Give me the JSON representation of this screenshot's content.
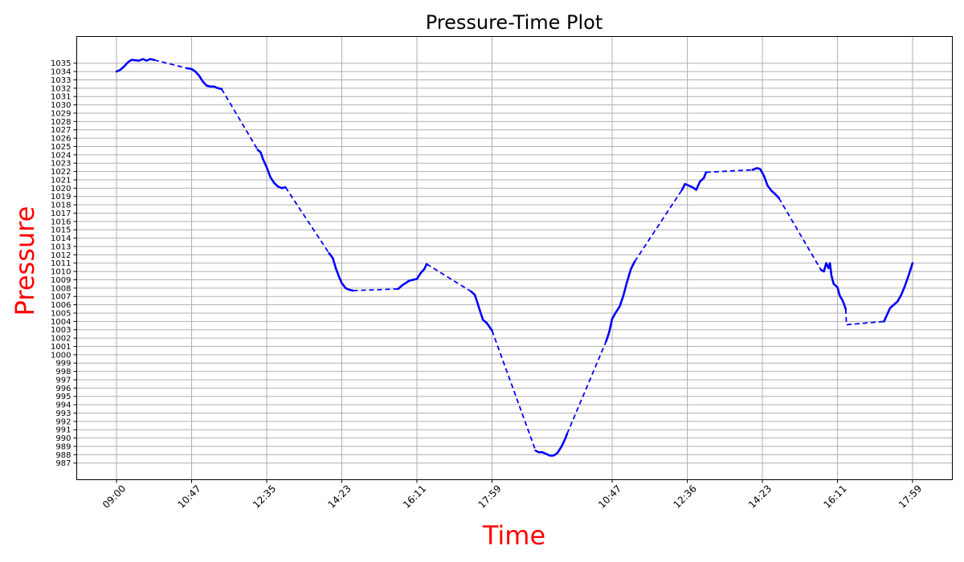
{
  "chart_data": {
    "type": "line",
    "title": "Pressure-Time Plot",
    "xlabel": "Time",
    "ylabel": "Pressure",
    "title_color": "#000000",
    "axis_label_color": "#ff0000",
    "line_color": "#0000ff",
    "grid": true,
    "x_tick_labels": [
      "09:00",
      "10:47",
      "12:35",
      "14:23",
      "16:11",
      "17:59",
      "10:47",
      "12:36",
      "14:23",
      "16:11",
      "17:59"
    ],
    "x_tick_positions": [
      0,
      1,
      2,
      3,
      4,
      5,
      6.6,
      7.6,
      8.6,
      9.6,
      10.6
    ],
    "xlim": [
      -0.53,
      11.13
    ],
    "ylim": [
      985.0,
      1038.2
    ],
    "y_ticks": [
      987,
      988,
      989,
      990,
      991,
      992,
      993,
      994,
      995,
      996,
      997,
      998,
      999,
      1000,
      1001,
      1002,
      1003,
      1004,
      1005,
      1006,
      1007,
      1008,
      1009,
      1010,
      1011,
      1012,
      1013,
      1014,
      1015,
      1016,
      1017,
      1018,
      1019,
      1020,
      1021,
      1022,
      1023,
      1024,
      1025,
      1026,
      1027,
      1028,
      1029,
      1030,
      1031,
      1032,
      1033,
      1034,
      1035
    ],
    "solid_segments": [
      [
        [
          0.0,
          1034.0
        ],
        [
          0.05,
          1034.2
        ],
        [
          0.1,
          1034.6
        ],
        [
          0.15,
          1035.1
        ],
        [
          0.2,
          1035.4
        ],
        [
          0.3,
          1035.3
        ],
        [
          0.35,
          1035.5
        ],
        [
          0.4,
          1035.3
        ],
        [
          0.45,
          1035.5
        ],
        [
          0.5,
          1035.4
        ]
      ],
      [
        [
          0.93,
          1034.4
        ],
        [
          1.0,
          1034.3
        ],
        [
          1.05,
          1034.0
        ],
        [
          1.1,
          1033.5
        ],
        [
          1.15,
          1032.8
        ],
        [
          1.2,
          1032.3
        ],
        [
          1.25,
          1032.2
        ],
        [
          1.3,
          1032.2
        ],
        [
          1.35,
          1032.0
        ],
        [
          1.4,
          1031.9
        ]
      ],
      [
        [
          1.88,
          1024.6
        ],
        [
          1.92,
          1024.3
        ],
        [
          1.95,
          1023.5
        ],
        [
          2.0,
          1022.5
        ],
        [
          2.05,
          1021.3
        ],
        [
          2.1,
          1020.6
        ],
        [
          2.15,
          1020.2
        ],
        [
          2.2,
          1020.0
        ],
        [
          2.25,
          1020.1
        ]
      ],
      [
        [
          2.83,
          1012.2
        ],
        [
          2.88,
          1011.6
        ],
        [
          2.92,
          1010.4
        ],
        [
          2.97,
          1009.2
        ],
        [
          3.0,
          1008.6
        ],
        [
          3.05,
          1008.0
        ],
        [
          3.1,
          1007.8
        ],
        [
          3.15,
          1007.7
        ]
      ],
      [
        [
          3.75,
          1007.9
        ],
        [
          3.8,
          1008.3
        ],
        [
          3.85,
          1008.6
        ],
        [
          3.9,
          1008.9
        ],
        [
          3.95,
          1009.0
        ],
        [
          4.0,
          1009.1
        ],
        [
          4.05,
          1009.8
        ],
        [
          4.1,
          1010.3
        ],
        [
          4.13,
          1010.9
        ]
      ],
      [
        [
          4.72,
          1007.6
        ],
        [
          4.77,
          1007.2
        ],
        [
          4.8,
          1006.4
        ],
        [
          4.85,
          1005.0
        ],
        [
          4.88,
          1004.2
        ],
        [
          4.93,
          1003.8
        ],
        [
          4.97,
          1003.3
        ],
        [
          5.0,
          1002.9
        ]
      ],
      [
        [
          5.58,
          988.5
        ],
        [
          5.62,
          988.3
        ],
        [
          5.67,
          988.3
        ],
        [
          5.72,
          988.1
        ],
        [
          5.77,
          987.9
        ],
        [
          5.82,
          987.9
        ],
        [
          5.87,
          988.2
        ],
        [
          5.92,
          988.9
        ],
        [
          5.97,
          989.8
        ],
        [
          6.0,
          990.5
        ]
      ],
      [
        [
          6.52,
          1001.6
        ],
        [
          6.56,
          1002.7
        ],
        [
          6.6,
          1004.3
        ],
        [
          6.65,
          1005.1
        ],
        [
          6.7,
          1005.8
        ],
        [
          6.75,
          1007.1
        ],
        [
          6.8,
          1008.8
        ],
        [
          6.85,
          1010.3
        ],
        [
          6.9,
          1011.2
        ]
      ],
      [
        [
          7.53,
          1019.8
        ],
        [
          7.57,
          1020.5
        ],
        [
          7.62,
          1020.3
        ],
        [
          7.67,
          1020.1
        ],
        [
          7.72,
          1019.8
        ],
        [
          7.77,
          1020.8
        ],
        [
          7.82,
          1021.2
        ],
        [
          7.85,
          1021.9
        ]
      ],
      [
        [
          8.47,
          1022.2
        ],
        [
          8.53,
          1022.4
        ],
        [
          8.57,
          1022.3
        ],
        [
          8.62,
          1021.5
        ],
        [
          8.67,
          1020.3
        ],
        [
          8.72,
          1019.7
        ],
        [
          8.77,
          1019.3
        ],
        [
          8.82,
          1018.8
        ]
      ],
      [
        [
          9.38,
          1010.2
        ],
        [
          9.42,
          1010.0
        ],
        [
          9.45,
          1011.0
        ],
        [
          9.48,
          1010.4
        ],
        [
          9.5,
          1011.0
        ],
        [
          9.52,
          1009.5
        ],
        [
          9.55,
          1008.5
        ],
        [
          9.6,
          1008.1
        ],
        [
          9.63,
          1007.1
        ],
        [
          9.67,
          1006.5
        ],
        [
          9.71,
          1005.5
        ]
      ],
      [
        [
          10.22,
          1004.0
        ],
        [
          10.26,
          1004.8
        ],
        [
          10.3,
          1005.6
        ],
        [
          10.35,
          1006.0
        ],
        [
          10.4,
          1006.4
        ],
        [
          10.45,
          1007.2
        ],
        [
          10.5,
          1008.3
        ],
        [
          10.55,
          1009.6
        ],
        [
          10.6,
          1011.0
        ]
      ]
    ],
    "gap_connectors": [
      [
        [
          0.5,
          1035.4
        ],
        [
          0.93,
          1034.4
        ]
      ],
      [
        [
          1.4,
          1031.9
        ],
        [
          1.88,
          1024.6
        ]
      ],
      [
        [
          2.25,
          1020.1
        ],
        [
          2.83,
          1012.2
        ]
      ],
      [
        [
          3.15,
          1007.7
        ],
        [
          3.75,
          1007.9
        ]
      ],
      [
        [
          4.13,
          1010.9
        ],
        [
          4.72,
          1007.6
        ]
      ],
      [
        [
          5.0,
          1002.9
        ],
        [
          5.58,
          988.5
        ]
      ],
      [
        [
          6.0,
          990.5
        ],
        [
          6.52,
          1001.6
        ]
      ],
      [
        [
          6.9,
          1011.2
        ],
        [
          7.53,
          1019.8
        ]
      ],
      [
        [
          7.85,
          1021.9
        ],
        [
          8.47,
          1022.2
        ]
      ],
      [
        [
          8.82,
          1018.8
        ],
        [
          9.38,
          1010.2
        ]
      ],
      [
        [
          9.71,
          1005.5
        ],
        [
          9.72,
          1003.6
        ],
        [
          10.22,
          1004.0
        ]
      ]
    ]
  }
}
